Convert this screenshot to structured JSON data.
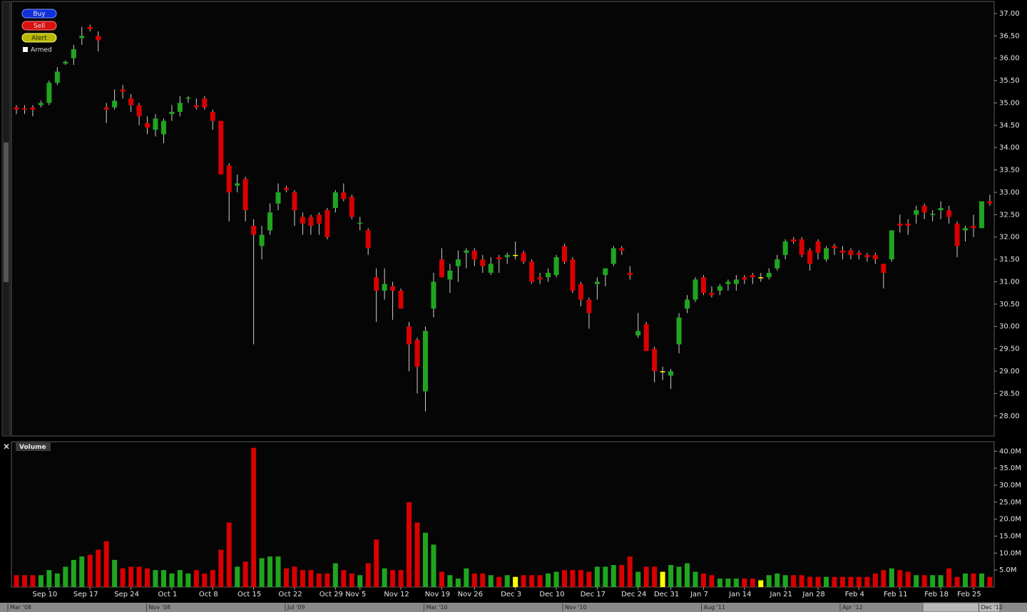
{
  "ui": {
    "buttons": [
      "Buy",
      "Sell",
      "Alert"
    ],
    "armed": "Armed",
    "timeline": [
      "Mar '08",
      "Nov '08",
      "Jul '09",
      "Mar '10",
      "Nov '10",
      "Aug '11",
      "Apr '12",
      "Dec '12"
    ]
  },
  "chart_data": [
    {
      "type": "candlestick",
      "colors": {
        "up": "#1fa51f",
        "down": "#d80000",
        "flat": "#ffff00",
        "wick": "#cfcfcf"
      },
      "ylim": [
        27.55,
        37.27
      ],
      "yticks": [
        {
          "value": 28,
          "label": "28.00"
        },
        {
          "value": 28.5,
          "label": "28.50"
        },
        {
          "value": 29,
          "label": "29.00"
        },
        {
          "value": 29.5,
          "label": "29.50"
        },
        {
          "value": 30,
          "label": "30.00"
        },
        {
          "value": 30.5,
          "label": "30.50"
        },
        {
          "value": 31,
          "label": "31.00"
        },
        {
          "value": 31.5,
          "label": "31.50"
        },
        {
          "value": 32,
          "label": "32.00"
        },
        {
          "value": 32.5,
          "label": "32.50"
        },
        {
          "value": 33,
          "label": "33.00"
        },
        {
          "value": 33.5,
          "label": "33.50"
        },
        {
          "value": 34,
          "label": "34.00"
        },
        {
          "value": 34.5,
          "label": "34.50"
        },
        {
          "value": 35,
          "label": "35.00"
        },
        {
          "value": 35.5,
          "label": "35.50"
        },
        {
          "value": 36,
          "label": "36.00"
        },
        {
          "value": 36.5,
          "label": "36.50"
        },
        {
          "value": 37,
          "label": "37.00"
        }
      ],
      "open": [
        34.9,
        34.88,
        34.9,
        34.95,
        35.0,
        35.45,
        35.88,
        36.0,
        36.45,
        36.7,
        36.5,
        34.9,
        34.9,
        35.3,
        35.1,
        34.95,
        34.55,
        34.4,
        34.3,
        34.75,
        34.8,
        35.1,
        34.95,
        35.1,
        34.8,
        34.6,
        33.6,
        33.15,
        33.3,
        32.25,
        31.8,
        32.15,
        32.75,
        33.1,
        33.0,
        32.45,
        32.45,
        32.5,
        32.6,
        32.65,
        33.0,
        32.9,
        32.3,
        32.15,
        31.1,
        30.8,
        30.9,
        30.8,
        30.0,
        29.7,
        28.55,
        30.4,
        31.5,
        31.05,
        31.35,
        31.65,
        31.7,
        31.5,
        31.2,
        31.55,
        31.55,
        31.6,
        31.65,
        31.45,
        31.1,
        31.1,
        31.15,
        31.8,
        31.5,
        30.95,
        30.6,
        30.95,
        31.15,
        31.4,
        31.75,
        31.2,
        29.8,
        30.05,
        29.5,
        29.0,
        28.9,
        29.6,
        30.4,
        30.6,
        31.1,
        30.75,
        30.8,
        30.95,
        30.95,
        31.1,
        31.15,
        31.1,
        31.1,
        31.3,
        31.6,
        31.95,
        31.95,
        31.7,
        31.9,
        31.5,
        31.8,
        31.7,
        31.7,
        31.65,
        31.6,
        31.6,
        31.4,
        31.5,
        32.3,
        32.3,
        32.5,
        32.7,
        32.5,
        32.6,
        32.6,
        32.3,
        32.15,
        32.25,
        32.2,
        32.8
      ],
      "high": [
        34.95,
        34.95,
        34.95,
        35.05,
        35.5,
        35.8,
        35.95,
        36.3,
        36.7,
        36.75,
        36.6,
        35.0,
        35.3,
        35.4,
        35.2,
        35.0,
        34.7,
        34.75,
        34.65,
        34.95,
        35.15,
        35.15,
        35.1,
        35.15,
        34.85,
        34.6,
        33.65,
        33.4,
        33.35,
        32.4,
        32.25,
        32.75,
        33.2,
        33.15,
        33.05,
        32.55,
        32.5,
        32.55,
        32.65,
        33.05,
        33.2,
        32.95,
        32.45,
        32.2,
        31.3,
        31.3,
        31.0,
        30.85,
        30.1,
        29.75,
        30.0,
        31.2,
        31.75,
        31.4,
        31.7,
        31.75,
        31.75,
        31.6,
        31.55,
        31.6,
        31.65,
        31.9,
        31.7,
        31.5,
        31.2,
        31.3,
        31.6,
        31.85,
        31.55,
        31.0,
        30.65,
        31.1,
        31.3,
        31.8,
        31.8,
        31.35,
        30.3,
        30.1,
        29.55,
        29.1,
        29.05,
        30.3,
        30.7,
        31.1,
        31.15,
        30.9,
        30.95,
        31.05,
        31.15,
        31.15,
        31.2,
        31.2,
        31.3,
        31.6,
        31.95,
        32.0,
        32.0,
        31.75,
        31.95,
        31.8,
        31.85,
        31.8,
        31.75,
        31.7,
        31.65,
        31.65,
        31.4,
        32.15,
        32.5,
        32.4,
        32.7,
        32.75,
        32.6,
        32.8,
        32.7,
        32.35,
        32.25,
        32.5,
        32.8,
        32.95
      ],
      "low": [
        34.75,
        34.75,
        34.7,
        34.9,
        34.95,
        35.4,
        35.85,
        35.85,
        36.3,
        36.6,
        36.15,
        34.55,
        34.85,
        35.1,
        34.8,
        34.5,
        34.3,
        34.25,
        34.1,
        34.6,
        34.7,
        35.0,
        34.85,
        34.85,
        34.4,
        33.4,
        32.35,
        33.0,
        32.35,
        29.6,
        31.5,
        32.05,
        32.6,
        33.0,
        32.25,
        32.05,
        32.05,
        32.05,
        31.95,
        32.55,
        32.8,
        32.4,
        32.15,
        31.6,
        30.1,
        30.6,
        30.15,
        30.4,
        29.0,
        28.5,
        28.1,
        30.2,
        31.1,
        30.75,
        31.0,
        31.3,
        31.35,
        31.2,
        31.15,
        31.2,
        31.4,
        31.5,
        31.4,
        30.95,
        30.95,
        31.0,
        31.1,
        31.4,
        30.75,
        30.45,
        29.95,
        30.6,
        30.9,
        31.35,
        31.6,
        31.05,
        29.75,
        29.45,
        28.75,
        28.8,
        28.6,
        29.4,
        30.3,
        30.55,
        30.7,
        30.65,
        30.7,
        30.8,
        30.8,
        30.95,
        30.95,
        31.0,
        31.05,
        31.25,
        31.5,
        31.85,
        31.55,
        31.25,
        31.5,
        31.45,
        31.6,
        31.5,
        31.5,
        31.5,
        31.45,
        31.4,
        30.85,
        31.45,
        32.1,
        32.05,
        32.3,
        32.4,
        32.35,
        32.4,
        32.3,
        31.55,
        31.9,
        32.0,
        32.2,
        32.7
      ],
      "close": [
        34.85,
        34.85,
        34.85,
        35.0,
        35.45,
        35.7,
        35.92,
        36.2,
        36.5,
        36.65,
        36.4,
        34.85,
        35.05,
        35.25,
        34.95,
        34.7,
        34.45,
        34.65,
        34.6,
        34.8,
        35.0,
        35.12,
        34.9,
        34.9,
        34.6,
        33.4,
        33.0,
        33.2,
        32.6,
        32.05,
        32.05,
        32.55,
        33.0,
        33.05,
        32.6,
        32.3,
        32.25,
        32.3,
        32.0,
        33.0,
        32.85,
        32.45,
        32.32,
        31.75,
        30.8,
        30.95,
        30.8,
        30.4,
        29.6,
        29.1,
        29.9,
        31.0,
        31.1,
        31.25,
        31.5,
        31.7,
        31.5,
        31.35,
        31.4,
        31.5,
        31.6,
        31.6,
        31.45,
        31.0,
        31.05,
        31.2,
        31.55,
        31.45,
        30.8,
        30.6,
        30.3,
        31.0,
        31.3,
        31.75,
        31.7,
        31.15,
        29.9,
        29.45,
        29.0,
        29.0,
        29.0,
        30.2,
        30.6,
        31.05,
        30.75,
        30.7,
        30.9,
        31.0,
        31.05,
        31.05,
        31.1,
        31.1,
        31.2,
        31.5,
        31.9,
        31.9,
        31.6,
        31.4,
        31.65,
        31.75,
        31.75,
        31.65,
        31.6,
        31.6,
        31.55,
        31.5,
        31.2,
        32.15,
        32.25,
        32.25,
        32.6,
        32.55,
        32.52,
        32.65,
        32.45,
        31.8,
        32.2,
        32.2,
        32.8,
        32.75
      ]
    },
    {
      "type": "bar",
      "title": "Volume",
      "categories": [
        null,
        null,
        null,
        null,
        "Sep 10",
        null,
        null,
        null,
        null,
        "Sep 17",
        null,
        null,
        null,
        null,
        "Sep 24",
        null,
        null,
        null,
        null,
        "Oct 1",
        null,
        null,
        null,
        null,
        "Oct 8",
        null,
        null,
        null,
        null,
        "Oct 15",
        null,
        null,
        null,
        null,
        "Oct 22",
        null,
        null,
        null,
        null,
        "Oct 29",
        null,
        null,
        "Nov 5",
        null,
        null,
        null,
        null,
        "Nov 12",
        null,
        null,
        null,
        null,
        "Nov 19",
        null,
        null,
        null,
        "Nov 26",
        null,
        null,
        null,
        null,
        "Dec 3",
        null,
        null,
        null,
        null,
        "Dec 10",
        null,
        null,
        null,
        null,
        "Dec 17",
        null,
        null,
        null,
        null,
        "Dec 24",
        null,
        null,
        null,
        "Dec 31",
        null,
        null,
        null,
        "Jan 7",
        null,
        null,
        null,
        null,
        "Jan 14",
        null,
        null,
        null,
        null,
        "Jan 21",
        null,
        null,
        null,
        "Jan 28",
        null,
        null,
        null,
        null,
        "Feb 4",
        null,
        null,
        null,
        null,
        "Feb 11",
        null,
        null,
        null,
        null,
        "Feb 18",
        null,
        null,
        null,
        "Feb 25",
        null,
        null
      ],
      "values": [
        3.5,
        3.5,
        3.5,
        3.5,
        5,
        4,
        6,
        8,
        9,
        9.5,
        11,
        13.5,
        8,
        5.5,
        6,
        6,
        5.5,
        5,
        5,
        4,
        5,
        4,
        5,
        4,
        5,
        11,
        19,
        6,
        7.5,
        41,
        8.5,
        9,
        9,
        5.5,
        6,
        5,
        5,
        4,
        4,
        7,
        5,
        4,
        3.5,
        7,
        14,
        5.5,
        5,
        5,
        25,
        19,
        16,
        12.5,
        4.5,
        3.5,
        2.5,
        5.5,
        4,
        4,
        3.5,
        3,
        3.5,
        3,
        3.5,
        3.5,
        3.5,
        4,
        4.5,
        5,
        5,
        5,
        4.5,
        6,
        6,
        6.5,
        6.5,
        9,
        4.5,
        6,
        6,
        4.5,
        6.5,
        6,
        7,
        4.5,
        4,
        3.5,
        2.5,
        2.5,
        2.5,
        2.5,
        2.5,
        2,
        3.5,
        4,
        3.5,
        3.5,
        3.5,
        3,
        3,
        3,
        3,
        3,
        3,
        3,
        3,
        4,
        5,
        5.5,
        5,
        4.5,
        3.5,
        3.5,
        3.5,
        3.5,
        5.5,
        3,
        4,
        4,
        4,
        3
      ],
      "ylim": [
        0,
        42.8
      ],
      "yticks": [
        {
          "value": 5,
          "label": "5.0M"
        },
        {
          "value": 10,
          "label": "10.0M"
        },
        {
          "value": 15,
          "label": "15.0M"
        },
        {
          "value": 20,
          "label": "20.0M"
        },
        {
          "value": 25,
          "label": "25.0M"
        },
        {
          "value": 30,
          "label": "30.0M"
        },
        {
          "value": 35,
          "label": "35.0M"
        },
        {
          "value": 40,
          "label": "40.0M"
        }
      ]
    }
  ]
}
